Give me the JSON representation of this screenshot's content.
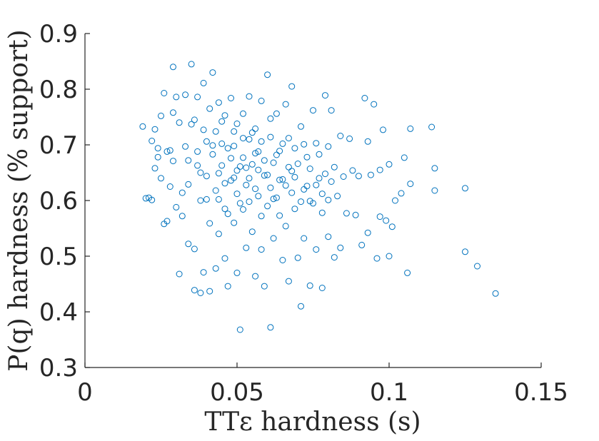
{
  "chart_data": {
    "type": "scatter",
    "xlabel": "TTε hardness (s)",
    "ylabel": "P(q) hardness (% support)",
    "xlim": [
      0,
      0.15
    ],
    "ylim": [
      0.3,
      0.9
    ],
    "x_ticks": [
      "0",
      "0.05",
      "0.1",
      "0.15"
    ],
    "y_ticks": [
      "0.3",
      "0.4",
      "0.5",
      "0.6",
      "0.7",
      "0.8",
      "0.9"
    ],
    "grid": false,
    "marker": "open-circle",
    "color": "#0072BD",
    "points": [
      [
        0.019,
        0.733
      ],
      [
        0.02,
        0.604
      ],
      [
        0.021,
        0.605
      ],
      [
        0.022,
        0.707
      ],
      [
        0.022,
        0.601
      ],
      [
        0.023,
        0.728
      ],
      [
        0.023,
        0.658
      ],
      [
        0.024,
        0.694
      ],
      [
        0.024,
        0.678
      ],
      [
        0.025,
        0.752
      ],
      [
        0.025,
        0.64
      ],
      [
        0.026,
        0.793
      ],
      [
        0.026,
        0.558
      ],
      [
        0.027,
        0.688
      ],
      [
        0.027,
        0.563
      ],
      [
        0.028,
        0.69
      ],
      [
        0.028,
        0.625
      ],
      [
        0.029,
        0.84
      ],
      [
        0.029,
        0.758
      ],
      [
        0.029,
        0.671
      ],
      [
        0.03,
        0.786
      ],
      [
        0.03,
        0.588
      ],
      [
        0.031,
        0.468
      ],
      [
        0.031,
        0.74
      ],
      [
        0.032,
        0.614
      ],
      [
        0.032,
        0.572
      ],
      [
        0.033,
        0.697
      ],
      [
        0.034,
        0.629
      ],
      [
        0.034,
        0.522
      ],
      [
        0.035,
        0.845
      ],
      [
        0.035,
        0.737
      ],
      [
        0.036,
        0.439
      ],
      [
        0.036,
        0.513
      ],
      [
        0.037,
        0.786
      ],
      [
        0.037,
        0.663
      ],
      [
        0.038,
        0.434
      ],
      [
        0.038,
        0.6
      ],
      [
        0.039,
        0.471
      ],
      [
        0.039,
        0.811
      ],
      [
        0.04,
        0.706
      ],
      [
        0.04,
        0.644
      ],
      [
        0.041,
        0.437
      ],
      [
        0.041,
        0.559
      ],
      [
        0.042,
        0.83
      ],
      [
        0.042,
        0.699
      ],
      [
        0.043,
        0.478
      ],
      [
        0.043,
        0.618
      ],
      [
        0.044,
        0.776
      ],
      [
        0.044,
        0.54
      ],
      [
        0.045,
        0.663
      ],
      [
        0.045,
        0.742
      ],
      [
        0.046,
        0.496
      ],
      [
        0.046,
        0.585
      ],
      [
        0.047,
        0.446
      ],
      [
        0.047,
        0.694
      ],
      [
        0.048,
        0.784
      ],
      [
        0.048,
        0.636
      ],
      [
        0.049,
        0.56
      ],
      [
        0.049,
        0.724
      ],
      [
        0.05,
        0.47
      ],
      [
        0.05,
        0.654
      ],
      [
        0.051,
        0.368
      ],
      [
        0.051,
        0.595
      ],
      [
        0.052,
        0.756
      ],
      [
        0.052,
        0.677
      ],
      [
        0.053,
        0.515
      ],
      [
        0.053,
        0.628
      ],
      [
        0.054,
        0.71
      ],
      [
        0.054,
        0.787
      ],
      [
        0.055,
        0.544
      ],
      [
        0.055,
        0.665
      ],
      [
        0.056,
        0.464
      ],
      [
        0.056,
        0.729
      ],
      [
        0.057,
        0.608
      ],
      [
        0.057,
        0.688
      ],
      [
        0.058,
        0.779
      ],
      [
        0.058,
        0.512
      ],
      [
        0.059,
        0.446
      ],
      [
        0.059,
        0.645
      ],
      [
        0.06,
        0.826
      ],
      [
        0.06,
        0.59
      ],
      [
        0.061,
        0.372
      ],
      [
        0.061,
        0.714
      ],
      [
        0.062,
        0.668
      ],
      [
        0.062,
        0.532
      ],
      [
        0.063,
        0.756
      ],
      [
        0.063,
        0.605
      ],
      [
        0.064,
        0.689
      ],
      [
        0.065,
        0.493
      ],
      [
        0.065,
        0.638
      ],
      [
        0.066,
        0.773
      ],
      [
        0.066,
        0.554
      ],
      [
        0.067,
        0.712
      ],
      [
        0.067,
        0.455
      ],
      [
        0.068,
        0.653
      ],
      [
        0.068,
        0.805
      ],
      [
        0.069,
        0.585
      ],
      [
        0.069,
        0.694
      ],
      [
        0.07,
        0.497
      ],
      [
        0.071,
        0.41
      ],
      [
        0.071,
        0.733
      ],
      [
        0.072,
        0.62
      ],
      [
        0.072,
        0.532
      ],
      [
        0.073,
        0.678
      ],
      [
        0.074,
        0.447
      ],
      [
        0.074,
        0.599
      ],
      [
        0.075,
        0.762
      ],
      [
        0.076,
        0.703
      ],
      [
        0.076,
        0.512
      ],
      [
        0.077,
        0.64
      ],
      [
        0.078,
        0.443
      ],
      [
        0.078,
        0.578
      ],
      [
        0.079,
        0.789
      ],
      [
        0.08,
        0.697
      ],
      [
        0.08,
        0.535
      ],
      [
        0.081,
        0.762
      ],
      [
        0.082,
        0.66
      ],
      [
        0.082,
        0.498
      ],
      [
        0.083,
        0.608
      ],
      [
        0.084,
        0.716
      ],
      [
        0.084,
        0.515
      ],
      [
        0.085,
        0.643
      ],
      [
        0.086,
        0.577
      ],
      [
        0.087,
        0.711
      ],
      [
        0.088,
        0.654
      ],
      [
        0.089,
        0.574
      ],
      [
        0.09,
        0.644
      ],
      [
        0.091,
        0.52
      ],
      [
        0.092,
        0.784
      ],
      [
        0.093,
        0.706
      ],
      [
        0.093,
        0.542
      ],
      [
        0.094,
        0.646
      ],
      [
        0.095,
        0.773
      ],
      [
        0.096,
        0.496
      ],
      [
        0.097,
        0.655
      ],
      [
        0.097,
        0.571
      ],
      [
        0.098,
        0.727
      ],
      [
        0.099,
        0.564
      ],
      [
        0.1,
        0.665
      ],
      [
        0.1,
        0.5
      ],
      [
        0.101,
        0.553
      ],
      [
        0.102,
        0.6
      ],
      [
        0.104,
        0.613
      ],
      [
        0.105,
        0.677
      ],
      [
        0.106,
        0.47
      ],
      [
        0.107,
        0.729
      ],
      [
        0.107,
        0.63
      ],
      [
        0.114,
        0.732
      ],
      [
        0.115,
        0.658
      ],
      [
        0.115,
        0.618
      ],
      [
        0.125,
        0.622
      ],
      [
        0.125,
        0.508
      ],
      [
        0.129,
        0.482
      ],
      [
        0.135,
        0.433
      ],
      [
        0.033,
        0.79
      ],
      [
        0.034,
        0.672
      ],
      [
        0.036,
        0.745
      ],
      [
        0.037,
        0.688
      ],
      [
        0.038,
        0.65
      ],
      [
        0.039,
        0.727
      ],
      [
        0.04,
        0.602
      ],
      [
        0.041,
        0.765
      ],
      [
        0.042,
        0.683
      ],
      [
        0.043,
        0.724
      ],
      [
        0.044,
        0.649
      ],
      [
        0.044,
        0.602
      ],
      [
        0.045,
        0.702
      ],
      [
        0.046,
        0.631
      ],
      [
        0.046,
        0.753
      ],
      [
        0.047,
        0.576
      ],
      [
        0.048,
        0.676
      ],
      [
        0.049,
        0.641
      ],
      [
        0.049,
        0.698
      ],
      [
        0.05,
        0.612
      ],
      [
        0.05,
        0.738
      ],
      [
        0.051,
        0.661
      ],
      [
        0.052,
        0.584
      ],
      [
        0.052,
        0.712
      ],
      [
        0.053,
        0.659
      ],
      [
        0.054,
        0.64
      ],
      [
        0.054,
        0.598
      ],
      [
        0.055,
        0.722
      ],
      [
        0.056,
        0.685
      ],
      [
        0.056,
        0.621
      ],
      [
        0.057,
        0.655
      ],
      [
        0.058,
        0.706
      ],
      [
        0.058,
        0.572
      ],
      [
        0.059,
        0.672
      ],
      [
        0.06,
        0.646
      ],
      [
        0.061,
        0.623
      ],
      [
        0.061,
        0.747
      ],
      [
        0.062,
        0.603
      ],
      [
        0.063,
        0.682
      ],
      [
        0.064,
        0.637
      ],
      [
        0.064,
        0.573
      ],
      [
        0.065,
        0.702
      ],
      [
        0.066,
        0.627
      ],
      [
        0.067,
        0.66
      ],
      [
        0.068,
        0.614
      ],
      [
        0.069,
        0.642
      ],
      [
        0.07,
        0.666
      ],
      [
        0.071,
        0.598
      ],
      [
        0.072,
        0.701
      ],
      [
        0.073,
        0.626
      ],
      [
        0.074,
        0.657
      ],
      [
        0.075,
        0.595
      ],
      [
        0.076,
        0.628
      ],
      [
        0.077,
        0.683
      ],
      [
        0.078,
        0.612
      ],
      [
        0.079,
        0.648
      ],
      [
        0.08,
        0.601
      ],
      [
        0.081,
        0.634
      ]
    ]
  }
}
